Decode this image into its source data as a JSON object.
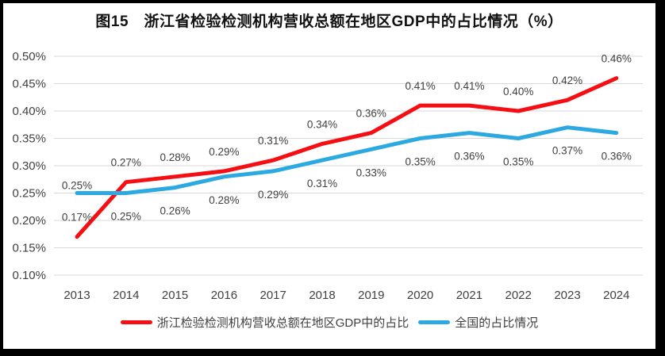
{
  "chart_data": {
    "type": "line",
    "title": "图15　浙江省检验检测机构营收总额在地区GDP中的占比情况（%）",
    "categories": [
      "2013",
      "2014",
      "2015",
      "2016",
      "2017",
      "2018",
      "2019",
      "2020",
      "2021",
      "2022",
      "2023",
      "2024"
    ],
    "series": [
      {
        "name": "浙江检验检测机构营收总额在地区GDP中的占比",
        "color": "#f50f14",
        "values": [
          0.17,
          0.27,
          0.28,
          0.29,
          0.31,
          0.34,
          0.36,
          0.41,
          0.41,
          0.4,
          0.42,
          0.46
        ],
        "labels": [
          "0.17%",
          "0.27%",
          "0.28%",
          "0.29%",
          "0.31%",
          "0.34%",
          "0.36%",
          "0.41%",
          "0.41%",
          "0.40%",
          "0.42%",
          "0.46%"
        ],
        "label_side": "above"
      },
      {
        "name": "全国的占比情况",
        "color": "#2ca9e0",
        "values": [
          0.25,
          0.25,
          0.26,
          0.28,
          0.29,
          0.31,
          0.33,
          0.35,
          0.36,
          0.35,
          0.37,
          0.36
        ],
        "labels": [
          "0.25%",
          "0.25%",
          "0.26%",
          "0.28%",
          "0.29%",
          "0.31%",
          "0.33%",
          "0.35%",
          "0.36%",
          "0.35%",
          "0.37%",
          "0.36%"
        ],
        "label_side": "below",
        "label_side_overrides": {
          "0": "near-above"
        }
      }
    ],
    "xlabel": "",
    "ylabel": "",
    "ylim": [
      0.1,
      0.5
    ],
    "ytick_step": 0.05,
    "yticks": [
      "0.50%",
      "0.45%",
      "0.40%",
      "0.35%",
      "0.30%",
      "0.25%",
      "0.20%",
      "0.15%",
      "0.10%"
    ],
    "grid": true,
    "legend_position": "bottom",
    "grid_color": "#d9d9d9",
    "text_color": "#404040",
    "point_label_color": "#404040"
  }
}
